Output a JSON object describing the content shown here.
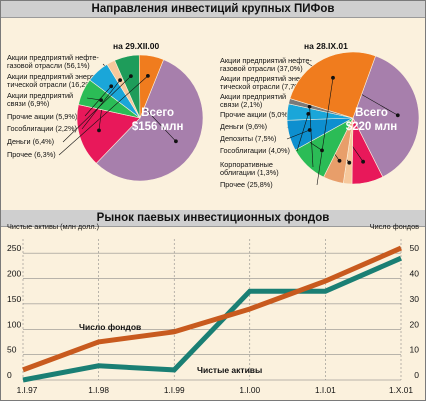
{
  "top_title": "Направления инвестиций крупных ПИФов",
  "bottom_title": "Рынок паевых инвестиционных фондов",
  "chart_data": [
    {
      "type": "pie",
      "title": "на 29.XII.00",
      "center_label": "Всего\n$156 млн",
      "slices": [
        {
          "label": "Акции предприятий нефте-\nгазовой отрасли (56,1%)",
          "value": 56.1,
          "color": "#a77fac"
        },
        {
          "label": "Акции предприятий энерге-\nтической отрасли (16,2%)",
          "value": 16.2,
          "color": "#e8185a"
        },
        {
          "label": "Акции предприятий\nсвязи (6,9%)",
          "value": 6.9,
          "color": "#2bbc56"
        },
        {
          "label": "Прочие акции (5,9%)",
          "value": 5.9,
          "color": "#1aa6d9"
        },
        {
          "label": "Гособлигации (2,2%)",
          "value": 2.2,
          "color": "#f6c89c"
        },
        {
          "label": "Деньги (6,4%)",
          "value": 6.4,
          "color": "#1e9c5a"
        },
        {
          "label": "Прочее (6,3%)",
          "value": 6.3,
          "color": "#f07c1e"
        }
      ]
    },
    {
      "type": "pie",
      "title": "на 28.IX.01",
      "center_label": "Всего\n$220 млн",
      "slices": [
        {
          "label": "Акции предприятий нефте-\nгазовой отрасли (37,0%)",
          "value": 37.0,
          "color": "#a77fac"
        },
        {
          "label": "Акции предприятий энерге-\nтической отрасли (7,7%)",
          "value": 7.7,
          "color": "#e8185a"
        },
        {
          "label": "Акции предприятий\nсвязи (2,1%)",
          "value": 2.1,
          "color": "#f6c89c"
        },
        {
          "label": "Прочие акции (5,0%)",
          "value": 5.0,
          "color": "#e89e6a"
        },
        {
          "label": "Деньги (9,6%)",
          "value": 9.6,
          "color": "#2bbc56"
        },
        {
          "label": "Депозиты (7,5%)",
          "value": 7.5,
          "color": "#0d8fcf"
        },
        {
          "label": "Гособлигации (4,0%)",
          "value": 4.0,
          "color": "#1aa6d9"
        },
        {
          "label": "Корпоративные\nоблигации (1,3%)",
          "value": 1.3,
          "color": "#7a7a7a"
        },
        {
          "label": "Прочее (25,8%)",
          "value": 25.8,
          "color": "#f07c1e"
        }
      ]
    },
    {
      "type": "line",
      "categories": [
        "1.I.97",
        "1.I.98",
        "1.I.99",
        "1.I.00",
        "1.I.01",
        "1.X.01"
      ],
      "y_left_label": "Чистые активы (млн долл.)",
      "y_right_label": "Число фондов",
      "y_left_ticks": [
        0,
        50,
        100,
        150,
        200,
        250
      ],
      "y_right_ticks": [
        0,
        10,
        20,
        30,
        40,
        50
      ],
      "ylim_left": [
        0,
        270
      ],
      "ylim_right": [
        0,
        54
      ],
      "series": [
        {
          "name": "Чистые активы",
          "axis": "left",
          "color": "#1a7f74",
          "values": [
            0,
            28,
            20,
            175,
            175,
            240
          ]
        },
        {
          "name": "Число фондов",
          "axis": "right",
          "color": "#c85a1e",
          "values": [
            4,
            15,
            19,
            28,
            39,
            52
          ]
        }
      ]
    }
  ]
}
